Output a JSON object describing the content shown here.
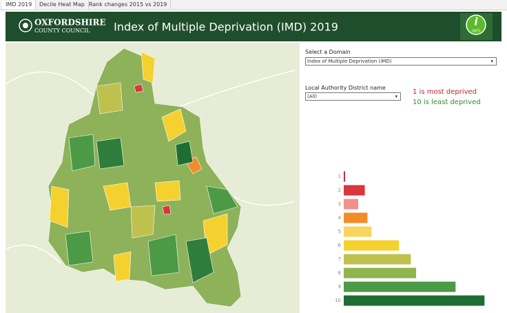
{
  "tabs": [
    "IMD 2019",
    "Decile Heat Map",
    "Rank changes 2015 vs 2019"
  ],
  "header": {
    "logo_line1": "OXFORDSHIRE",
    "logo_line2": "COUNTY COUNCIL",
    "title": "Index of Multiple Deprivation (IMD) 2019",
    "info_icon": "i",
    "info": "INFO"
  },
  "filters": [
    {
      "label": "Select a Domain",
      "value": "Index of Multiple Deprivation (IMD)"
    },
    {
      "label": "Local Authority District name",
      "value": "(All)"
    }
  ],
  "legend": {
    "most": "1 is most deprived",
    "least": "10 is least deprived"
  },
  "chart_data": {
    "type": "bar",
    "orientation": "horizontal",
    "categories": [
      "1",
      "2",
      "3",
      "4",
      "5",
      "6",
      "7",
      "8",
      "9",
      "10"
    ],
    "values": [
      1,
      16,
      11,
      18,
      21,
      42,
      51,
      55,
      85,
      107
    ],
    "colors": [
      "#c4202e",
      "#d9363e",
      "#f2918a",
      "#f28c28",
      "#fbd35f",
      "#f5d130",
      "#bfc14f",
      "#8fb54b",
      "#4c9a45",
      "#1e6e33"
    ],
    "xlim": [
      0,
      122
    ]
  }
}
